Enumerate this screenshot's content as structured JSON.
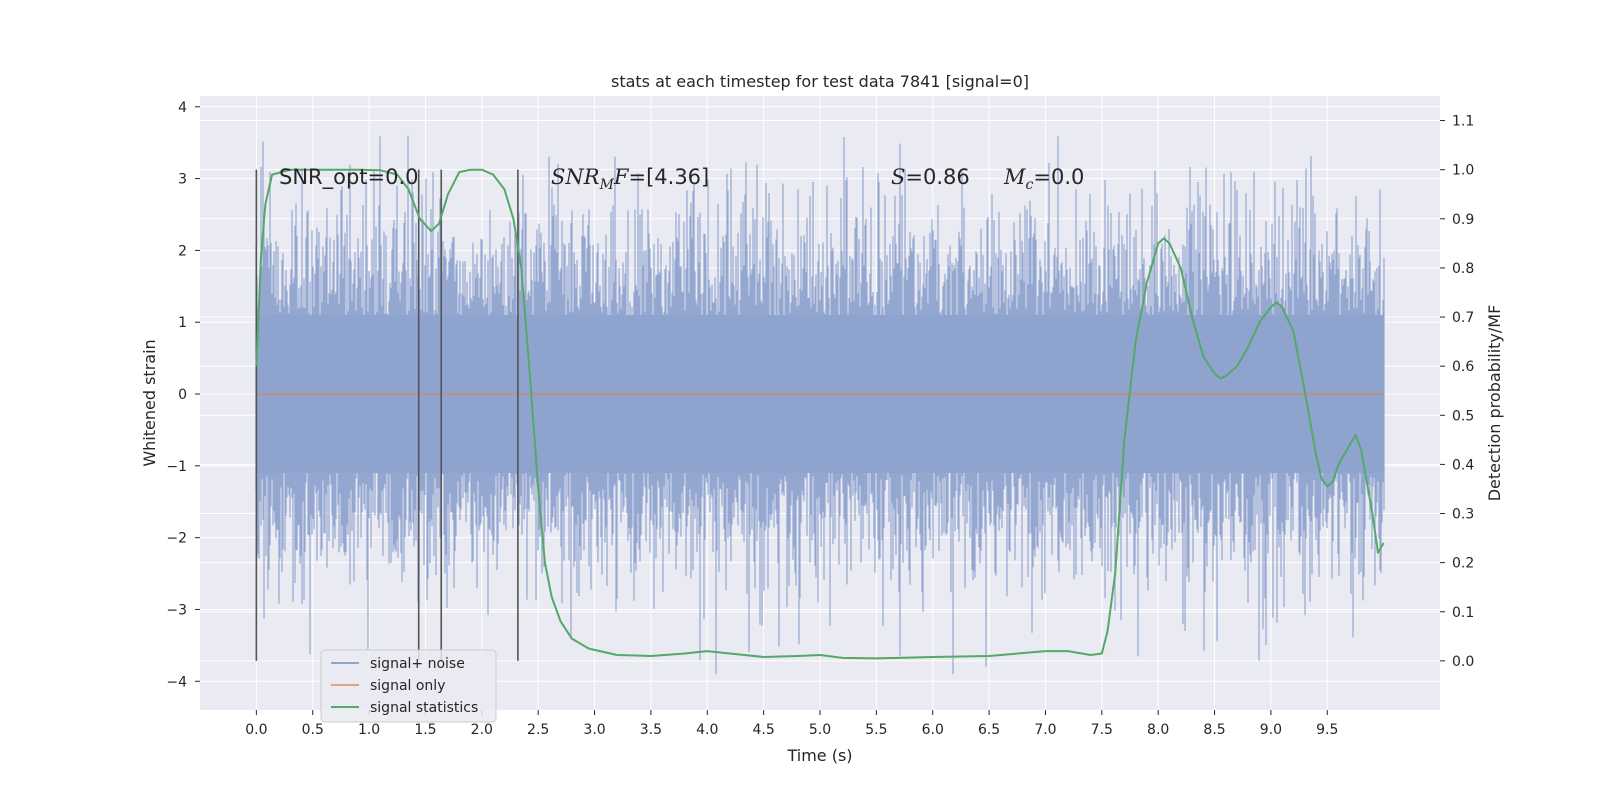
{
  "chart_data": {
    "type": "line",
    "title": "stats at each timestep for test data 7841 [signal=0]",
    "xlabel": "Time (s)",
    "ylabel": "Whitened strain",
    "y2label": "Detection probability/MF",
    "xlim": [
      -0.5,
      10.5
    ],
    "ylim": [
      -4.4,
      4.15
    ],
    "y2lim": [
      -0.1,
      1.15
    ],
    "xticks": [
      "0.0",
      "0.5",
      "1.0",
      "1.5",
      "2.0",
      "2.5",
      "3.0",
      "3.5",
      "4.0",
      "4.5",
      "5.0",
      "5.5",
      "6.0",
      "6.5",
      "7.0",
      "7.5",
      "8.0",
      "8.5",
      "9.0",
      "9.5"
    ],
    "yticks": [
      "4",
      "3",
      "2",
      "1",
      "0",
      "−1",
      "−2",
      "−3",
      "−4"
    ],
    "y2ticks": [
      "1.1",
      "1.0",
      "0.9",
      "0.8",
      "0.7",
      "0.6",
      "0.5",
      "0.4",
      "0.3",
      "0.2",
      "0.1",
      "0.0"
    ],
    "grid": true,
    "legend_position": "lower-left",
    "colors": {
      "noise": "#8fa3cf",
      "signal_only": "#dd8452",
      "statistics": "#55a868",
      "marker": "#555555",
      "background": "#eaeaf2",
      "grid": "#ffffff"
    },
    "series": [
      {
        "name": "signal+ noise",
        "description": "whitened strain noise, roughly Gaussian band between about -3.5 and 3.8 over 0 to 10 s"
      },
      {
        "name": "signal only",
        "x": [
          0,
          10
        ],
        "y": [
          0,
          0
        ]
      },
      {
        "name": "signal statistics",
        "axis": "right",
        "x": [
          0.0,
          0.04,
          0.08,
          0.14,
          0.3,
          0.6,
          0.9,
          1.1,
          1.25,
          1.35,
          1.45,
          1.55,
          1.62,
          1.7,
          1.8,
          1.9,
          2.0,
          2.1,
          2.2,
          2.28,
          2.35,
          2.42,
          2.5,
          2.56,
          2.62,
          2.7,
          2.8,
          2.95,
          3.2,
          3.5,
          3.8,
          4.0,
          4.2,
          4.5,
          4.8,
          5.0,
          5.2,
          5.5,
          6.0,
          6.5,
          7.0,
          7.2,
          7.4,
          7.5,
          7.55,
          7.62,
          7.7,
          7.8,
          7.9,
          8.0,
          8.05,
          8.1,
          8.2,
          8.3,
          8.4,
          8.5,
          8.55,
          8.6,
          8.7,
          8.8,
          8.9,
          9.0,
          9.05,
          9.1,
          9.2,
          9.3,
          9.4,
          9.45,
          9.5,
          9.55,
          9.6,
          9.7,
          9.75,
          9.8,
          9.9,
          9.95,
          10.0
        ],
        "y": [
          0.6,
          0.82,
          0.93,
          0.99,
          1.0,
          1.0,
          1.0,
          0.999,
          0.99,
          0.96,
          0.9,
          0.875,
          0.89,
          0.95,
          0.995,
          1.0,
          1.0,
          0.99,
          0.96,
          0.9,
          0.8,
          0.6,
          0.35,
          0.2,
          0.13,
          0.08,
          0.045,
          0.025,
          0.012,
          0.01,
          0.015,
          0.02,
          0.015,
          0.008,
          0.01,
          0.012,
          0.006,
          0.005,
          0.008,
          0.01,
          0.02,
          0.02,
          0.012,
          0.015,
          0.06,
          0.18,
          0.45,
          0.65,
          0.77,
          0.85,
          0.86,
          0.85,
          0.8,
          0.7,
          0.62,
          0.585,
          0.575,
          0.58,
          0.6,
          0.64,
          0.69,
          0.72,
          0.73,
          0.72,
          0.67,
          0.55,
          0.42,
          0.37,
          0.355,
          0.365,
          0.4,
          0.44,
          0.46,
          0.43,
          0.3,
          0.22,
          0.24
        ]
      }
    ],
    "vertical_markers": [
      0.0,
      1.44,
      1.64,
      2.32
    ],
    "annotations": {
      "snr_opt": "SNR_opt=0.0",
      "snr_mf_sub": "M",
      "snr_mf_value": "=[4.36]",
      "s_value": "=0.86",
      "mc_sub": "c",
      "mc_value": "=0.0"
    }
  }
}
